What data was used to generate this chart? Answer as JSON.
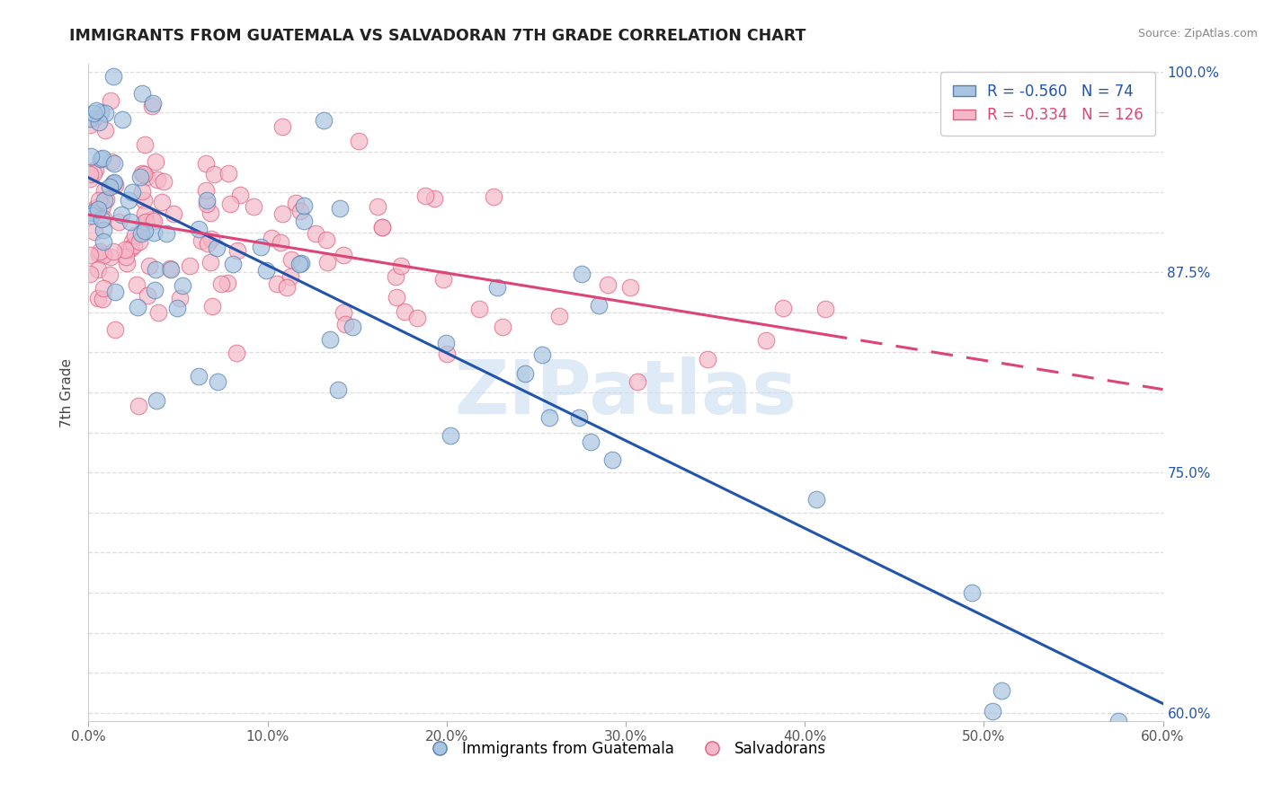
{
  "title": "IMMIGRANTS FROM GUATEMALA VS SALVADORAN 7TH GRADE CORRELATION CHART",
  "source": "Source: ZipAtlas.com",
  "ylabel": "7th Grade",
  "legend_labels": [
    "Immigrants from Guatemala",
    "Salvadorans"
  ],
  "blue_R": -0.56,
  "blue_N": 74,
  "pink_R": -0.334,
  "pink_N": 126,
  "blue_color": "#a8c4e0",
  "pink_color": "#f4b8c8",
  "blue_edge_color": "#5580b0",
  "pink_edge_color": "#e06080",
  "blue_line_color": "#2255aa",
  "pink_line_color": "#dd4477",
  "watermark_color": "#c8ddf0",
  "watermark_text": "ZIPatlas",
  "xlim": [
    0.0,
    0.6
  ],
  "ylim": [
    0.595,
    1.005
  ],
  "xticks": [
    0.0,
    0.1,
    0.2,
    0.3,
    0.4,
    0.5,
    0.6
  ],
  "xticklabels": [
    "0.0%",
    "10.0%",
    "20.0%",
    "30.0%",
    "40.0%",
    "50.0%",
    "60.0%"
  ],
  "ytick_positions": [
    0.6,
    0.625,
    0.65,
    0.675,
    0.7,
    0.725,
    0.75,
    0.775,
    0.8,
    0.825,
    0.85,
    0.875,
    0.9,
    0.925,
    0.95,
    0.975,
    1.0
  ],
  "yticklabels_right": [
    "60.0%",
    "",
    "",
    "",
    "",
    "",
    "75.0%",
    "",
    "",
    "",
    "",
    "87.5%",
    "",
    "",
    "",
    "",
    "100.0%"
  ],
  "blue_intercept": 0.935,
  "blue_slope": -0.58,
  "pink_intercept": 0.91,
  "pink_slope": -0.175
}
